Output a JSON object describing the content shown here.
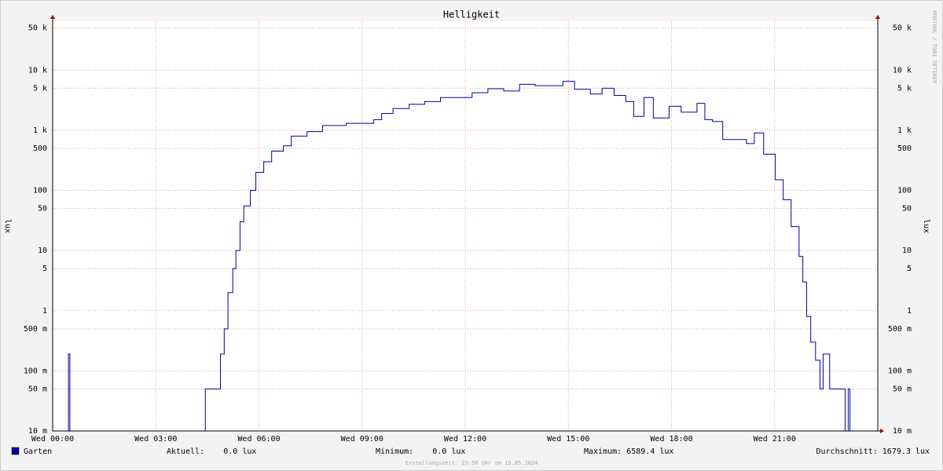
{
  "chart_data": {
    "type": "line",
    "title": "Helligkeit",
    "y_label": "lux",
    "log_scale": true,
    "grid": true,
    "side_text": "RRDTOOL / TOBI OETIKER",
    "footer": "Erstellungszeit: 23:58 Uhr am 15.05.2024",
    "xlim": [
      0,
      24
    ],
    "xticks": [
      {
        "value": 0,
        "label": "Wed 00:00"
      },
      {
        "value": 3,
        "label": "Wed 03:00"
      },
      {
        "value": 6,
        "label": "Wed 06:00"
      },
      {
        "value": 9,
        "label": "Wed 09:00"
      },
      {
        "value": 12,
        "label": "Wed 12:00"
      },
      {
        "value": 15,
        "label": "Wed 15:00"
      },
      {
        "value": 18,
        "label": "Wed 18:00"
      },
      {
        "value": 21,
        "label": "Wed 21:00"
      }
    ],
    "ylim": [
      0.01,
      65000
    ],
    "yticks": [
      {
        "value": 0.01,
        "label": "10 m"
      },
      {
        "value": 0.05,
        "label": "50 m"
      },
      {
        "value": 0.1,
        "label": "100 m"
      },
      {
        "value": 0.5,
        "label": "500 m"
      },
      1,
      5,
      10,
      50,
      100,
      500,
      {
        "value": 1000,
        "label": "1 k"
      },
      {
        "value": 5000,
        "label": "5 k"
      },
      {
        "value": 10000,
        "label": "10 k"
      },
      {
        "value": 50000,
        "label": "50 k"
      }
    ],
    "x": [
      0,
      0.46,
      0.5,
      4.44,
      4.79,
      4.88,
      4.99,
      5.1,
      5.24,
      5.33,
      5.45,
      5.56,
      5.75,
      5.91,
      6.14,
      6.37,
      6.71,
      6.94,
      7.4,
      7.85,
      8.54,
      9.34,
      9.45,
      9.57,
      9.9,
      10.37,
      10.82,
      11.28,
      11.74,
      12.2,
      12.66,
      13.12,
      13.58,
      14.03,
      14.49,
      14.84,
      15.18,
      15.64,
      15.98,
      16.33,
      16.67,
      16.9,
      17.2,
      17.47,
      17.93,
      18.28,
      18.74,
      18.97,
      19.19,
      19.49,
      19.88,
      20.18,
      20.41,
      20.68,
      21.02,
      21.25,
      21.48,
      21.71,
      21.82,
      21.93,
      22.05,
      22.19,
      22.32,
      22.41,
      22.6,
      23.05,
      23.14,
      23.19,
      24
    ],
    "series": [
      {
        "name": "Garten",
        "color": "#0000a0",
        "values": [
          0,
          0.19,
          0,
          0.05,
          0.05,
          0.19,
          0.5,
          2,
          5,
          10,
          30,
          55,
          100,
          200,
          300,
          450,
          550,
          800,
          950,
          1200,
          1300,
          1500,
          1500,
          1900,
          2300,
          2700,
          3000,
          3500,
          3500,
          4200,
          4900,
          4500,
          5800,
          5500,
          5500,
          6500,
          4800,
          4000,
          5000,
          3800,
          3000,
          1700,
          3500,
          1600,
          2500,
          2000,
          2800,
          1500,
          1400,
          700,
          700,
          600,
          900,
          400,
          150,
          70,
          25,
          8,
          3,
          0.8,
          0.3,
          0.15,
          0.05,
          0.19,
          0.05,
          0,
          0.05,
          0,
          0
        ]
      }
    ],
    "legend_stats": [
      "Aktuell:    0.0 lux",
      "Minimum:    0.0 lux",
      "Maximum: 6589.4 lux",
      "Durchschnitt: 1679.3 lux"
    ]
  }
}
